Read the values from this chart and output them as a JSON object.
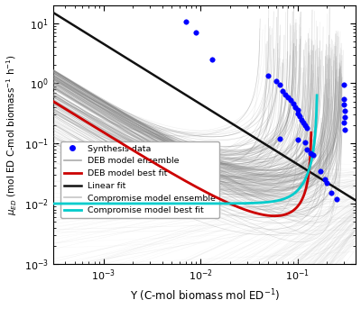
{
  "xlim": [
    0.0003,
    0.4
  ],
  "ylim": [
    0.001,
    20.0
  ],
  "xlabel": "Y (C-mol biomass mol ED$^{-1}$)",
  "ylabel_full": "$\\mu_{ED}$ (mol ED C-mol biomass$^{-1}$ h$^{-1}$)",
  "ylabel_short": "$\\mu_{ED}$",
  "blue_dots": [
    [
      0.007,
      10.5
    ],
    [
      0.009,
      7.0
    ],
    [
      0.013,
      2.5
    ],
    [
      0.05,
      1.35
    ],
    [
      0.06,
      1.1
    ],
    [
      0.065,
      0.95
    ],
    [
      0.07,
      0.75
    ],
    [
      0.075,
      0.65
    ],
    [
      0.08,
      0.58
    ],
    [
      0.085,
      0.52
    ],
    [
      0.09,
      0.46
    ],
    [
      0.095,
      0.4
    ],
    [
      0.1,
      0.36
    ],
    [
      0.1,
      0.32
    ],
    [
      0.105,
      0.28
    ],
    [
      0.11,
      0.25
    ],
    [
      0.115,
      0.22
    ],
    [
      0.12,
      0.2
    ],
    [
      0.125,
      0.18
    ],
    [
      0.065,
      0.12
    ],
    [
      0.1,
      0.115
    ],
    [
      0.12,
      0.105
    ],
    [
      0.125,
      0.08
    ],
    [
      0.135,
      0.07
    ],
    [
      0.145,
      0.065
    ],
    [
      0.17,
      0.035
    ],
    [
      0.19,
      0.025
    ],
    [
      0.2,
      0.022
    ],
    [
      0.22,
      0.015
    ],
    [
      0.25,
      0.012
    ],
    [
      0.3,
      0.95
    ],
    [
      0.3,
      0.55
    ],
    [
      0.3,
      0.45
    ],
    [
      0.305,
      0.35
    ],
    [
      0.305,
      0.27
    ],
    [
      0.3,
      0.22
    ],
    [
      0.305,
      0.17
    ]
  ],
  "bg_color": "#ffffff",
  "deb_ensemble_color": "#888888",
  "compromise_ensemble_color": "#c0c0c0",
  "deb_best_color": "#cc0000",
  "linear_color": "#111111",
  "compromise_best_color": "#00cccc"
}
